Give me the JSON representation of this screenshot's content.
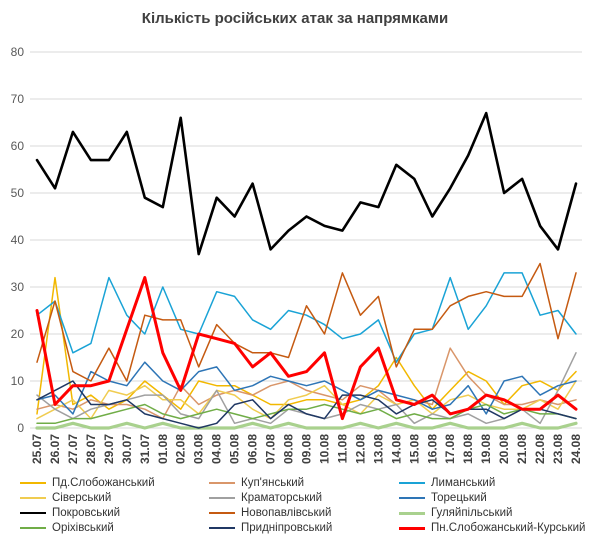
{
  "chart_data": {
    "type": "line",
    "title": "Кількість російських атак за напрямками",
    "xlabel": "",
    "ylabel": "",
    "ylim": [
      0,
      80
    ],
    "yticks": [
      0,
      10,
      20,
      30,
      40,
      50,
      60,
      70,
      80
    ],
    "grid": "horizontal",
    "legend_position": "bottom",
    "categories": [
      "25.07",
      "26.07",
      "27.07",
      "28.07",
      "29.07",
      "30.07",
      "31.07",
      "01.08",
      "02.08",
      "03.08",
      "04.08",
      "05.08",
      "06.08",
      "07.08",
      "08.08",
      "09.08",
      "10.08",
      "11.08",
      "12.08",
      "13.08",
      "14.08",
      "15.08",
      "16.08",
      "17.08",
      "18.08",
      "19.08",
      "20.08",
      "21.08",
      "22.08",
      "23.08",
      "24.08"
    ],
    "series": [
      {
        "name": "Пд.Слобожанський",
        "color": "#f2b800",
        "width": 1.5,
        "values": [
          3,
          32,
          5,
          7,
          4,
          6,
          10,
          7,
          4,
          10,
          9,
          9,
          7,
          5,
          5,
          6,
          6,
          5,
          6,
          9,
          15,
          9,
          4,
          8,
          12,
          10,
          5,
          9,
          10,
          8,
          12
        ]
      },
      {
        "name": "Куп'янський",
        "color": "#d9966a",
        "width": 1.5,
        "values": [
          4,
          5,
          4,
          6,
          5,
          5,
          4,
          2,
          9,
          5,
          7,
          8,
          7,
          9,
          10,
          8,
          7,
          6,
          9,
          8,
          5,
          6,
          5,
          17,
          11,
          7,
          5,
          5,
          6,
          5,
          6
        ]
      },
      {
        "name": "Лиманський",
        "color": "#1aa3d6",
        "width": 1.5,
        "values": [
          24,
          27,
          16,
          18,
          32,
          24,
          20,
          30,
          21,
          20,
          29,
          28,
          23,
          21,
          25,
          24,
          22,
          19,
          20,
          23,
          14,
          20,
          21,
          32,
          21,
          26,
          33,
          33,
          24,
          25,
          20
        ]
      },
      {
        "name": "Сіверський",
        "color": "#f0cc50",
        "width": 1.5,
        "values": [
          2,
          4,
          6,
          2,
          8,
          7,
          9,
          6,
          6,
          3,
          8,
          7,
          4,
          2,
          6,
          7,
          9,
          5,
          3,
          7,
          5,
          6,
          3,
          6,
          7,
          5,
          4,
          4,
          6,
          4,
          10
        ]
      },
      {
        "name": "Краматорський",
        "color": "#a0a0a0",
        "width": 1.5,
        "values": [
          7,
          4,
          2,
          4,
          5,
          6,
          7,
          7,
          3,
          2,
          8,
          1,
          2,
          1,
          4,
          3,
          2,
          3,
          5,
          4,
          5,
          1,
          3,
          2,
          3,
          1,
          2,
          4,
          1,
          8,
          16
        ]
      },
      {
        "name": "Торецький",
        "color": "#2e75b6",
        "width": 1.5,
        "values": [
          6,
          7,
          3,
          12,
          10,
          9,
          14,
          10,
          8,
          12,
          13,
          8,
          9,
          11,
          10,
          9,
          10,
          8,
          6,
          8,
          7,
          6,
          4,
          5,
          9,
          3,
          10,
          11,
          7,
          9,
          10
        ]
      },
      {
        "name": "Покровський",
        "color": "#000000",
        "width": 2.6,
        "values": [
          57,
          51,
          63,
          57,
          57,
          63,
          49,
          47,
          66,
          37,
          49,
          45,
          52,
          38,
          42,
          45,
          43,
          42,
          48,
          47,
          56,
          53,
          45,
          51,
          58,
          67,
          50,
          53,
          43,
          38,
          52
        ]
      },
      {
        "name": "Новопавлівський",
        "color": "#c55a11",
        "width": 1.5,
        "values": [
          14,
          27,
          12,
          10,
          17,
          10,
          24,
          23,
          23,
          13,
          22,
          18,
          16,
          16,
          15,
          26,
          20,
          33,
          24,
          28,
          13,
          21,
          21,
          26,
          28,
          29,
          28,
          28,
          35,
          19,
          33
        ]
      },
      {
        "name": "Гуляйпільський",
        "color": "#a9d18e",
        "width": 3.2,
        "values": [
          0,
          0,
          1,
          0,
          0,
          1,
          0,
          1,
          0,
          0,
          0,
          0,
          1,
          0,
          1,
          0,
          0,
          0,
          1,
          0,
          1,
          0,
          0,
          1,
          0,
          0,
          0,
          1,
          0,
          0,
          1
        ]
      },
      {
        "name": "Оріхівський",
        "color": "#70ad47",
        "width": 1.5,
        "values": [
          1,
          1,
          2,
          2,
          3,
          4,
          5,
          3,
          2,
          3,
          4,
          3,
          2,
          3,
          4,
          4,
          5,
          4,
          3,
          4,
          2,
          3,
          2,
          2,
          4,
          5,
          3,
          4,
          3,
          3,
          2
        ]
      },
      {
        "name": "Придніпровський",
        "color": "#203864",
        "width": 1.5,
        "values": [
          6,
          8,
          10,
          5,
          5,
          6,
          3,
          2,
          1,
          0,
          1,
          5,
          6,
          2,
          5,
          3,
          2,
          7,
          7,
          6,
          3,
          5,
          6,
          3,
          4,
          4,
          2,
          4,
          4,
          3,
          2
        ]
      },
      {
        "name": "Пн.Слобожанський-Курський",
        "color": "#ff0000",
        "width": 3,
        "values": [
          25,
          5,
          9,
          9,
          10,
          21,
          32,
          16,
          8,
          20,
          19,
          18,
          13,
          16,
          11,
          12,
          16,
          2,
          13,
          17,
          6,
          5,
          7,
          3,
          4,
          7,
          6,
          4,
          4,
          7,
          4
        ]
      }
    ]
  }
}
